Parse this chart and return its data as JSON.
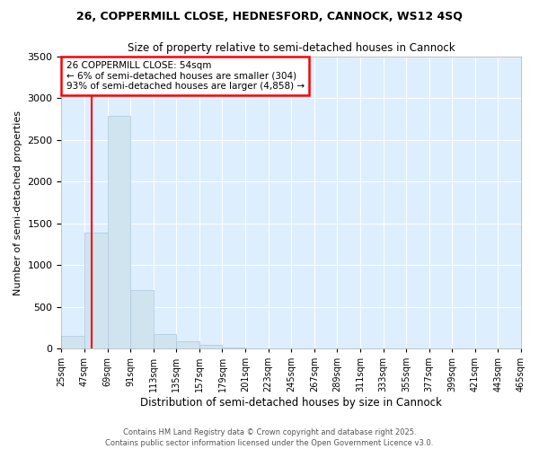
{
  "title1": "26, COPPERMILL CLOSE, HEDNESFORD, CANNOCK, WS12 4SQ",
  "title2": "Size of property relative to semi-detached houses in Cannock",
  "xlabel": "Distribution of semi-detached houses by size in Cannock",
  "ylabel": "Number of semi-detached properties",
  "annotation_title": "26 COPPERMILL CLOSE: 54sqm",
  "annotation_line1": "← 6% of semi-detached houses are smaller (304)",
  "annotation_line2": "93% of semi-detached houses are larger (4,858) →",
  "footer1": "Contains HM Land Registry data © Crown copyright and database right 2025.",
  "footer2": "Contains public sector information licensed under the Open Government Licence v3.0.",
  "bar_color": "#d0e4f0",
  "bar_edge_color": "#aac8dc",
  "background_color": "#ddeeff",
  "vline_x": 54,
  "vline_color": "red",
  "bins": [
    25,
    47,
    69,
    91,
    113,
    135,
    157,
    179,
    201,
    223,
    245,
    267,
    289,
    311,
    333,
    355,
    377,
    399,
    421,
    443,
    465
  ],
  "bin_labels": [
    "25sqm",
    "47sqm",
    "69sqm",
    "91sqm",
    "113sqm",
    "135sqm",
    "157sqm",
    "179sqm",
    "201sqm",
    "223sqm",
    "245sqm",
    "267sqm",
    "289sqm",
    "311sqm",
    "333sqm",
    "355sqm",
    "377sqm",
    "399sqm",
    "421sqm",
    "443sqm",
    "465sqm"
  ],
  "counts": [
    155,
    1390,
    2790,
    700,
    175,
    85,
    40,
    10,
    5,
    3,
    2,
    1,
    1,
    1,
    0,
    0,
    0,
    0,
    0,
    0
  ],
  "ylim": [
    0,
    3500
  ],
  "yticks": [
    0,
    500,
    1000,
    1500,
    2000,
    2500,
    3000,
    3500
  ]
}
